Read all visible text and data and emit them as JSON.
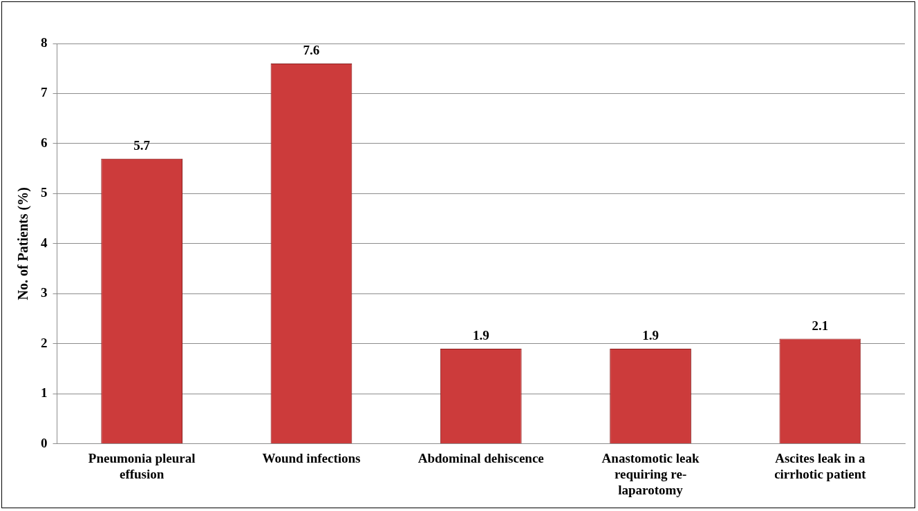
{
  "chart_data": {
    "type": "bar",
    "ylabel": "No. of Patients (%)",
    "categories": [
      "Pneumonia pleural effusion",
      "Wound infections",
      "Abdominal dehiscence",
      "Anastomotic leak requiring re-laparotomy",
      "Ascites leak in a cirrhotic patient"
    ],
    "values": [
      5.7,
      7.6,
      1.9,
      1.9,
      2.1
    ],
    "color": "#cc3b3b",
    "ylim": [
      0,
      8
    ],
    "yticks": [
      0,
      1,
      2,
      3,
      4,
      5,
      6,
      7,
      8
    ],
    "grid": "y",
    "data_labels": true,
    "legend": false
  }
}
